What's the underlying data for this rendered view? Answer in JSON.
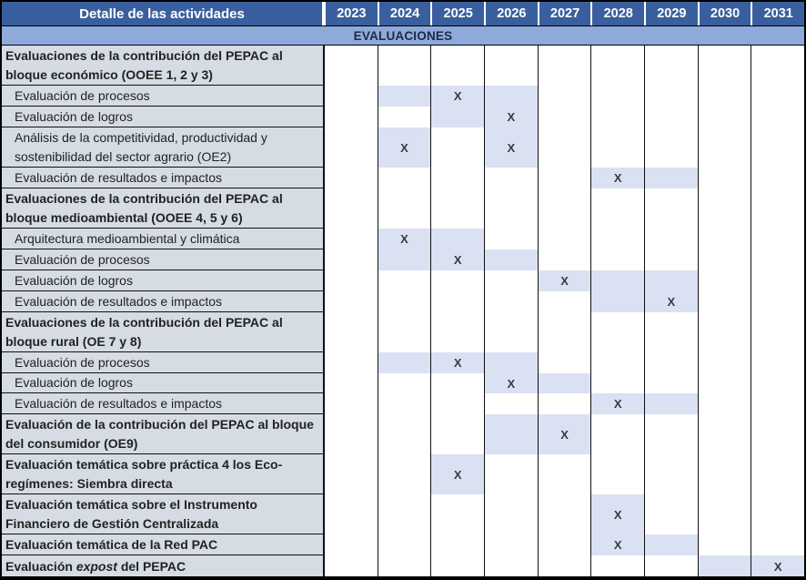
{
  "chart_data": {
    "type": "table",
    "subtype": "gantt-milestones",
    "title": "EVALUACIONES",
    "header_label": "Detalle de las actividades",
    "years": [
      "2023",
      "2024",
      "2025",
      "2026",
      "2027",
      "2028",
      "2029",
      "2030",
      "2031"
    ],
    "milestone_glyph": "X",
    "legend_position": "none",
    "grid": "vertical-only",
    "rows": [
      {
        "style": "group",
        "label": "Evaluaciones de la contribución del PEPAC al bloque económico (OOEE 1, 2 y 3)",
        "height": 44,
        "shaded": [],
        "x": []
      },
      {
        "style": "item",
        "label": "Evaluación de procesos",
        "height": 23,
        "shaded": [
          "2024",
          "2026"
        ],
        "x": [
          "2025"
        ]
      },
      {
        "style": "item",
        "label": "Evaluación de logros",
        "height": 23,
        "shaded": [
          "2025"
        ],
        "x": [
          "2026"
        ]
      },
      {
        "style": "item",
        "label": "Análisis de la competitividad, productividad y sostenibilidad del sector agrario (OE2)",
        "height": 44,
        "shaded": [],
        "x": [
          "2024",
          "2026"
        ]
      },
      {
        "style": "item",
        "label": "Evaluación de resultados e impactos",
        "height": 23,
        "shaded": [
          "2029"
        ],
        "x": [
          "2028"
        ]
      },
      {
        "style": "group",
        "label": "Evaluaciones de la contribución del PEPAC al bloque medioambiental (OOEE 4, 5 y 6)",
        "height": 44,
        "shaded": [],
        "x": []
      },
      {
        "style": "item",
        "label": "Arquitectura medioambiental y climática",
        "height": 23,
        "shaded": [
          "2025"
        ],
        "x": [
          "2024"
        ]
      },
      {
        "style": "item",
        "label": "Evaluación de procesos",
        "height": 23,
        "shaded": [
          "2024",
          "2026"
        ],
        "x": [
          "2025"
        ]
      },
      {
        "style": "item",
        "label": "Evaluación de logros",
        "height": 23,
        "shaded": [
          "2028",
          "2029"
        ],
        "x": [
          "2027"
        ]
      },
      {
        "style": "item",
        "label": "Evaluación de resultados e impactos",
        "height": 23,
        "shaded": [
          "2028"
        ],
        "x": [
          "2029"
        ]
      },
      {
        "style": "group",
        "label": "Evaluaciones de la contribución del PEPAC al bloque rural (OE 7 y 8)",
        "height": 44,
        "shaded": [],
        "x": []
      },
      {
        "style": "item",
        "label": "Evaluación de procesos",
        "height": 23,
        "shaded": [
          "2024",
          "2026"
        ],
        "x": [
          "2025"
        ]
      },
      {
        "style": "item",
        "label": "Evaluación de logros",
        "height": 22,
        "shaded": [
          "2027"
        ],
        "x": [
          "2026"
        ]
      },
      {
        "style": "item",
        "label": "Evaluación de resultados e impactos",
        "height": 23,
        "shaded": [
          "2029"
        ],
        "x": [
          "2028"
        ]
      },
      {
        "style": "group",
        "label": "Evaluación de la contribución del PEPAC al bloque del consumidor (OE9)",
        "height": 44,
        "shaded": [
          "2026"
        ],
        "x": [
          "2027"
        ]
      },
      {
        "style": "group",
        "label": "Evaluación temática sobre práctica 4 los Eco-regímenes: Siembra directa",
        "height": 44,
        "shaded": [],
        "x": [
          "2025"
        ]
      },
      {
        "style": "group",
        "label": "Evaluación temática sobre el Instrumento Financiero de Gestión Centralizada",
        "height": 44,
        "shaded": [],
        "x": [
          "2028"
        ]
      },
      {
        "style": "group",
        "label": "Evaluación temática de la Red PAC",
        "height": 23,
        "shaded": [
          "2029"
        ],
        "x": [
          "2028"
        ]
      },
      {
        "style": "group",
        "label_parts": [
          {
            "text": "Evaluación ",
            "italic": false
          },
          {
            "text": "expost",
            "italic": true
          },
          {
            "text": " del PEPAC",
            "italic": false
          }
        ],
        "label": "Evaluación expost del PEPAC",
        "height": 24,
        "shaded": [
          "2030"
        ],
        "x": [
          "2031"
        ]
      }
    ],
    "colors": {
      "header_bg": "#3A5F9E",
      "header_text": "#FFFFFF",
      "band_bg": "#8EAADB",
      "band_text": "#1F2A44",
      "label_bg": "#D6DCE4",
      "shade": "#D9E1F2",
      "mark": "#3A3A3A",
      "grid_line": "#111111"
    }
  }
}
